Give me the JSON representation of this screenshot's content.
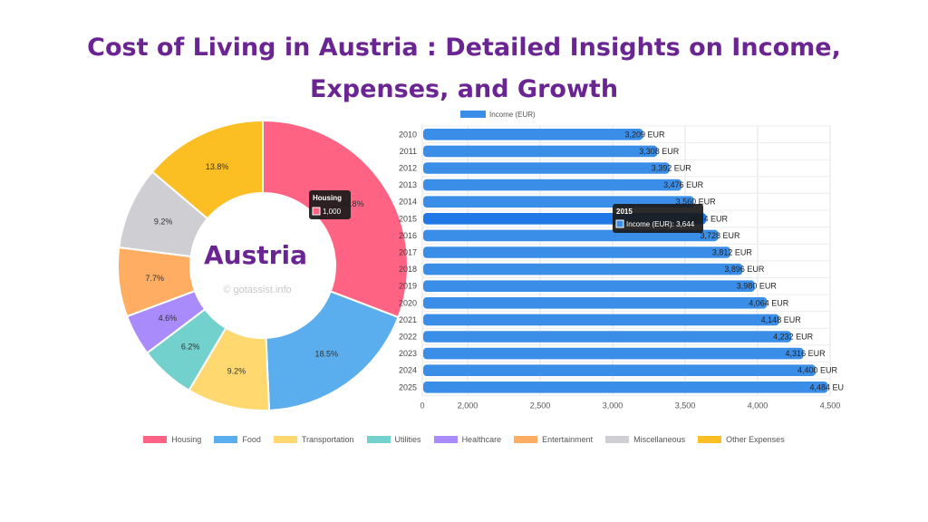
{
  "title_line1": "Cost of Living in Austria : Detailed Insights on Income,",
  "title_line2": "Expenses, and Growth",
  "chart_data": [
    {
      "type": "pie",
      "donut": true,
      "center_label": "Austria",
      "watermark": "© gotassist.info",
      "categories": [
        "Housing",
        "Food",
        "Transportation",
        "Utilities",
        "Healthcare",
        "Entertainment",
        "Miscellaneous",
        "Other Expenses"
      ],
      "values": [
        30.8,
        18.5,
        9.2,
        6.2,
        4.6,
        7.7,
        9.2,
        13.8
      ],
      "labels": [
        "30.8%",
        "18.5%",
        "9.2%",
        "6.2%",
        "4.6%",
        "7.7%",
        "9.2%",
        "13.8%"
      ],
      "colors": [
        "#ff6384",
        "#5aaeee",
        "#ffd970",
        "#72d1cc",
        "#a98bfb",
        "#ffad63",
        "#cfcfd3",
        "#fbbf24"
      ],
      "legend": "bottom",
      "tooltip": {
        "title": "Housing",
        "value": "1,000"
      }
    },
    {
      "type": "bar",
      "orientation": "horizontal",
      "categories": [
        "2010",
        "2011",
        "2012",
        "2013",
        "2014",
        "2015",
        "2016",
        "2017",
        "2018",
        "2019",
        "2020",
        "2021",
        "2022",
        "2023",
        "2024",
        "2025"
      ],
      "series": [
        {
          "name": "Income (EUR)",
          "values": [
            3209,
            3308,
            3392,
            3476,
            3560,
            3644,
            3728,
            3812,
            3896,
            3980,
            4064,
            4148,
            4232,
            4316,
            4400,
            4484
          ],
          "color": "#3b8ee8"
        }
      ],
      "data_labels": [
        "3,209 EUR",
        "3,308 EUR",
        "3,392 EUR",
        "3,476 EUR",
        "3,560 EUR",
        "3,644 EUR",
        "3,728 EUR",
        "3,812 EUR",
        "3,896 EUR",
        "3,980 EUR",
        "4,064 EUR",
        "4,148 EUR",
        "4,232 EUR",
        "4,316 EUR",
        "4,400 EUR",
        "4,484 EU"
      ],
      "xlim": [
        0,
        4500
      ],
      "x_ticks": [
        0,
        2000,
        2500,
        3000,
        3500,
        4000,
        4500
      ],
      "x_tick_labels": [
        "0",
        "2,000",
        "2,500",
        "3,000",
        "3,500",
        "4,000",
        "4,500"
      ],
      "grid": true,
      "legend": "top",
      "highlight": "2015",
      "tooltip": {
        "title": "2015",
        "text": "Income (EUR): 3,644"
      }
    }
  ]
}
